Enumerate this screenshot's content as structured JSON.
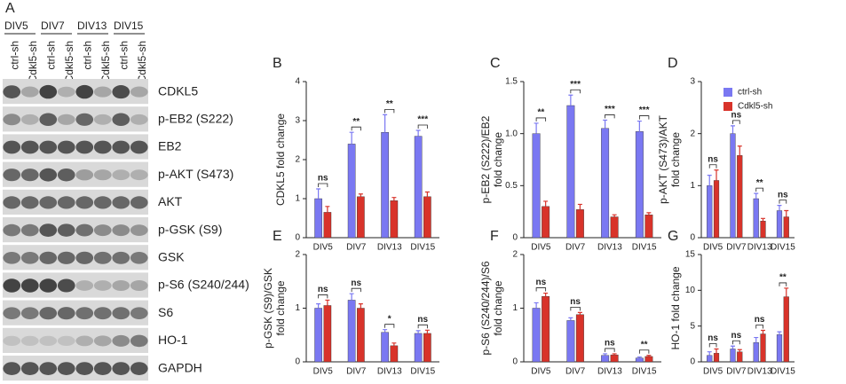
{
  "panel_a": {
    "panel": "A",
    "groups": [
      "DIV5",
      "DIV7",
      "DIV13",
      "DIV15"
    ],
    "lanes": [
      "ctrl-sh",
      "Cdkl5-sh",
      "ctrl-sh",
      "Cdkl5-sh",
      "ctrl-sh",
      "Cdkl5-sh",
      "ctrl-sh",
      "Cdkl5-sh"
    ],
    "proteins": [
      "CDKL5",
      "p-EB2 (S222)",
      "EB2",
      "p-AKT (S473)",
      "AKT",
      "p-GSK (S9)",
      "GSK",
      "p-S6 (S240/244)",
      "S6",
      "HO-1",
      "GAPDH"
    ]
  },
  "chart_data": [
    {
      "type": "bar",
      "panel": "B",
      "ylabel": [
        "CDKL5  fold change"
      ],
      "categories": [
        "DIV5",
        "DIV7",
        "DIV13",
        "DIV15"
      ],
      "series": [
        {
          "name": "ctrl-sh",
          "color": "#7a78f2",
          "values": [
            1.0,
            2.4,
            2.7,
            2.6
          ],
          "errors": [
            0.25,
            0.3,
            0.45,
            0.15
          ]
        },
        {
          "name": "Cdkl5-sh",
          "color": "#d8332a",
          "values": [
            0.65,
            1.05,
            0.95,
            1.05
          ],
          "errors": [
            0.15,
            0.07,
            0.08,
            0.12
          ]
        }
      ],
      "annotations": [
        "ns",
        "**",
        "**",
        "***"
      ],
      "ylim": [
        0,
        4
      ],
      "yticks": [
        0,
        1,
        2,
        3,
        4
      ]
    },
    {
      "type": "bar",
      "panel": "C",
      "ylabel": [
        "p-EB2 (S222)/EB2",
        "fold change"
      ],
      "categories": [
        "DIV5",
        "DIV7",
        "DIV13",
        "DIV15"
      ],
      "series": [
        {
          "name": "ctrl-sh",
          "color": "#7a78f2",
          "values": [
            1.0,
            1.27,
            1.05,
            1.02
          ],
          "errors": [
            0.1,
            0.1,
            0.08,
            0.1
          ]
        },
        {
          "name": "Cdkl5-sh",
          "color": "#d8332a",
          "values": [
            0.3,
            0.27,
            0.2,
            0.22
          ],
          "errors": [
            0.05,
            0.05,
            0.02,
            0.02
          ]
        }
      ],
      "annotations": [
        "**",
        "***",
        "***",
        "***"
      ],
      "ylim": [
        0,
        1.5
      ],
      "yticks": [
        0,
        0.5,
        {
          "value": 1,
          "label": "1.0"
        },
        1.5
      ]
    },
    {
      "type": "bar",
      "panel": "D",
      "ylabel": [
        "p-AKT (S473)/AKT",
        "fold change"
      ],
      "categories": [
        "DIV5",
        "DIV7",
        "DIV13",
        "DIV15"
      ],
      "series": [
        {
          "name": "ctrl-sh",
          "color": "#7a78f2",
          "values": [
            1.0,
            2.0,
            0.75,
            0.52
          ],
          "errors": [
            0.2,
            0.15,
            0.1,
            0.1
          ]
        },
        {
          "name": "Cdkl5-sh",
          "color": "#d8332a",
          "values": [
            1.1,
            1.58,
            0.32,
            0.4
          ],
          "errors": [
            0.2,
            0.18,
            0.05,
            0.12
          ]
        }
      ],
      "annotations": [
        "ns",
        "ns",
        "**",
        "ns"
      ],
      "ylim": [
        0,
        3
      ],
      "yticks": [
        0,
        1,
        2,
        3
      ],
      "legend": "top-right"
    },
    {
      "type": "bar",
      "panel": "E",
      "ylabel": [
        "p-GSK (S9)/GSK",
        "fold change"
      ],
      "categories": [
        "DIV5",
        "DIV7",
        "DIV13",
        "DIV15"
      ],
      "series": [
        {
          "name": "ctrl-sh",
          "color": "#7a78f2",
          "values": [
            1.0,
            1.15,
            0.55,
            0.53
          ],
          "errors": [
            0.08,
            0.12,
            0.05,
            0.05
          ]
        },
        {
          "name": "Cdkl5-sh",
          "color": "#d8332a",
          "values": [
            1.05,
            1.0,
            0.3,
            0.53
          ],
          "errors": [
            0.1,
            0.08,
            0.05,
            0.06
          ]
        }
      ],
      "annotations": [
        "ns",
        "ns",
        "*",
        "ns"
      ],
      "ylim": [
        0,
        2
      ],
      "yticks": [
        0,
        1,
        2
      ]
    },
    {
      "type": "bar",
      "panel": "F",
      "ylabel": [
        "p-S6 (S240/244)/S6",
        "fold change"
      ],
      "categories": [
        "DIV5",
        "DIV7",
        "DIV13",
        "DIV15"
      ],
      "series": [
        {
          "name": "ctrl-sh",
          "color": "#7a78f2",
          "values": [
            1.0,
            0.77,
            0.12,
            0.07
          ],
          "errors": [
            0.1,
            0.05,
            0.03,
            0.02
          ]
        },
        {
          "name": "Cdkl5-sh",
          "color": "#d8332a",
          "values": [
            1.22,
            0.88,
            0.13,
            0.1
          ],
          "errors": [
            0.06,
            0.04,
            0.02,
            0.02
          ]
        }
      ],
      "annotations": [
        "ns",
        "ns",
        "ns",
        "**"
      ],
      "ylim": [
        0,
        2
      ],
      "yticks": [
        0,
        1,
        2
      ]
    },
    {
      "type": "bar",
      "panel": "G",
      "ylabel": [
        "HO-1 fold change"
      ],
      "categories": [
        "DIV5",
        "DIV7",
        "DIV13",
        "DIV15"
      ],
      "series": [
        {
          "name": "ctrl-sh",
          "color": "#7a78f2",
          "values": [
            0.9,
            1.8,
            2.7,
            3.8
          ],
          "errors": [
            0.5,
            0.4,
            0.7,
            0.4
          ]
        },
        {
          "name": "Cdkl5-sh",
          "color": "#d8332a",
          "values": [
            1.2,
            1.4,
            3.9,
            9.1
          ],
          "errors": [
            0.6,
            0.3,
            0.5,
            1.2
          ]
        }
      ],
      "annotations": [
        "ns",
        "ns",
        "ns",
        "**"
      ],
      "ylim": [
        0,
        15
      ],
      "yticks": [
        0,
        5,
        10,
        15
      ]
    }
  ]
}
